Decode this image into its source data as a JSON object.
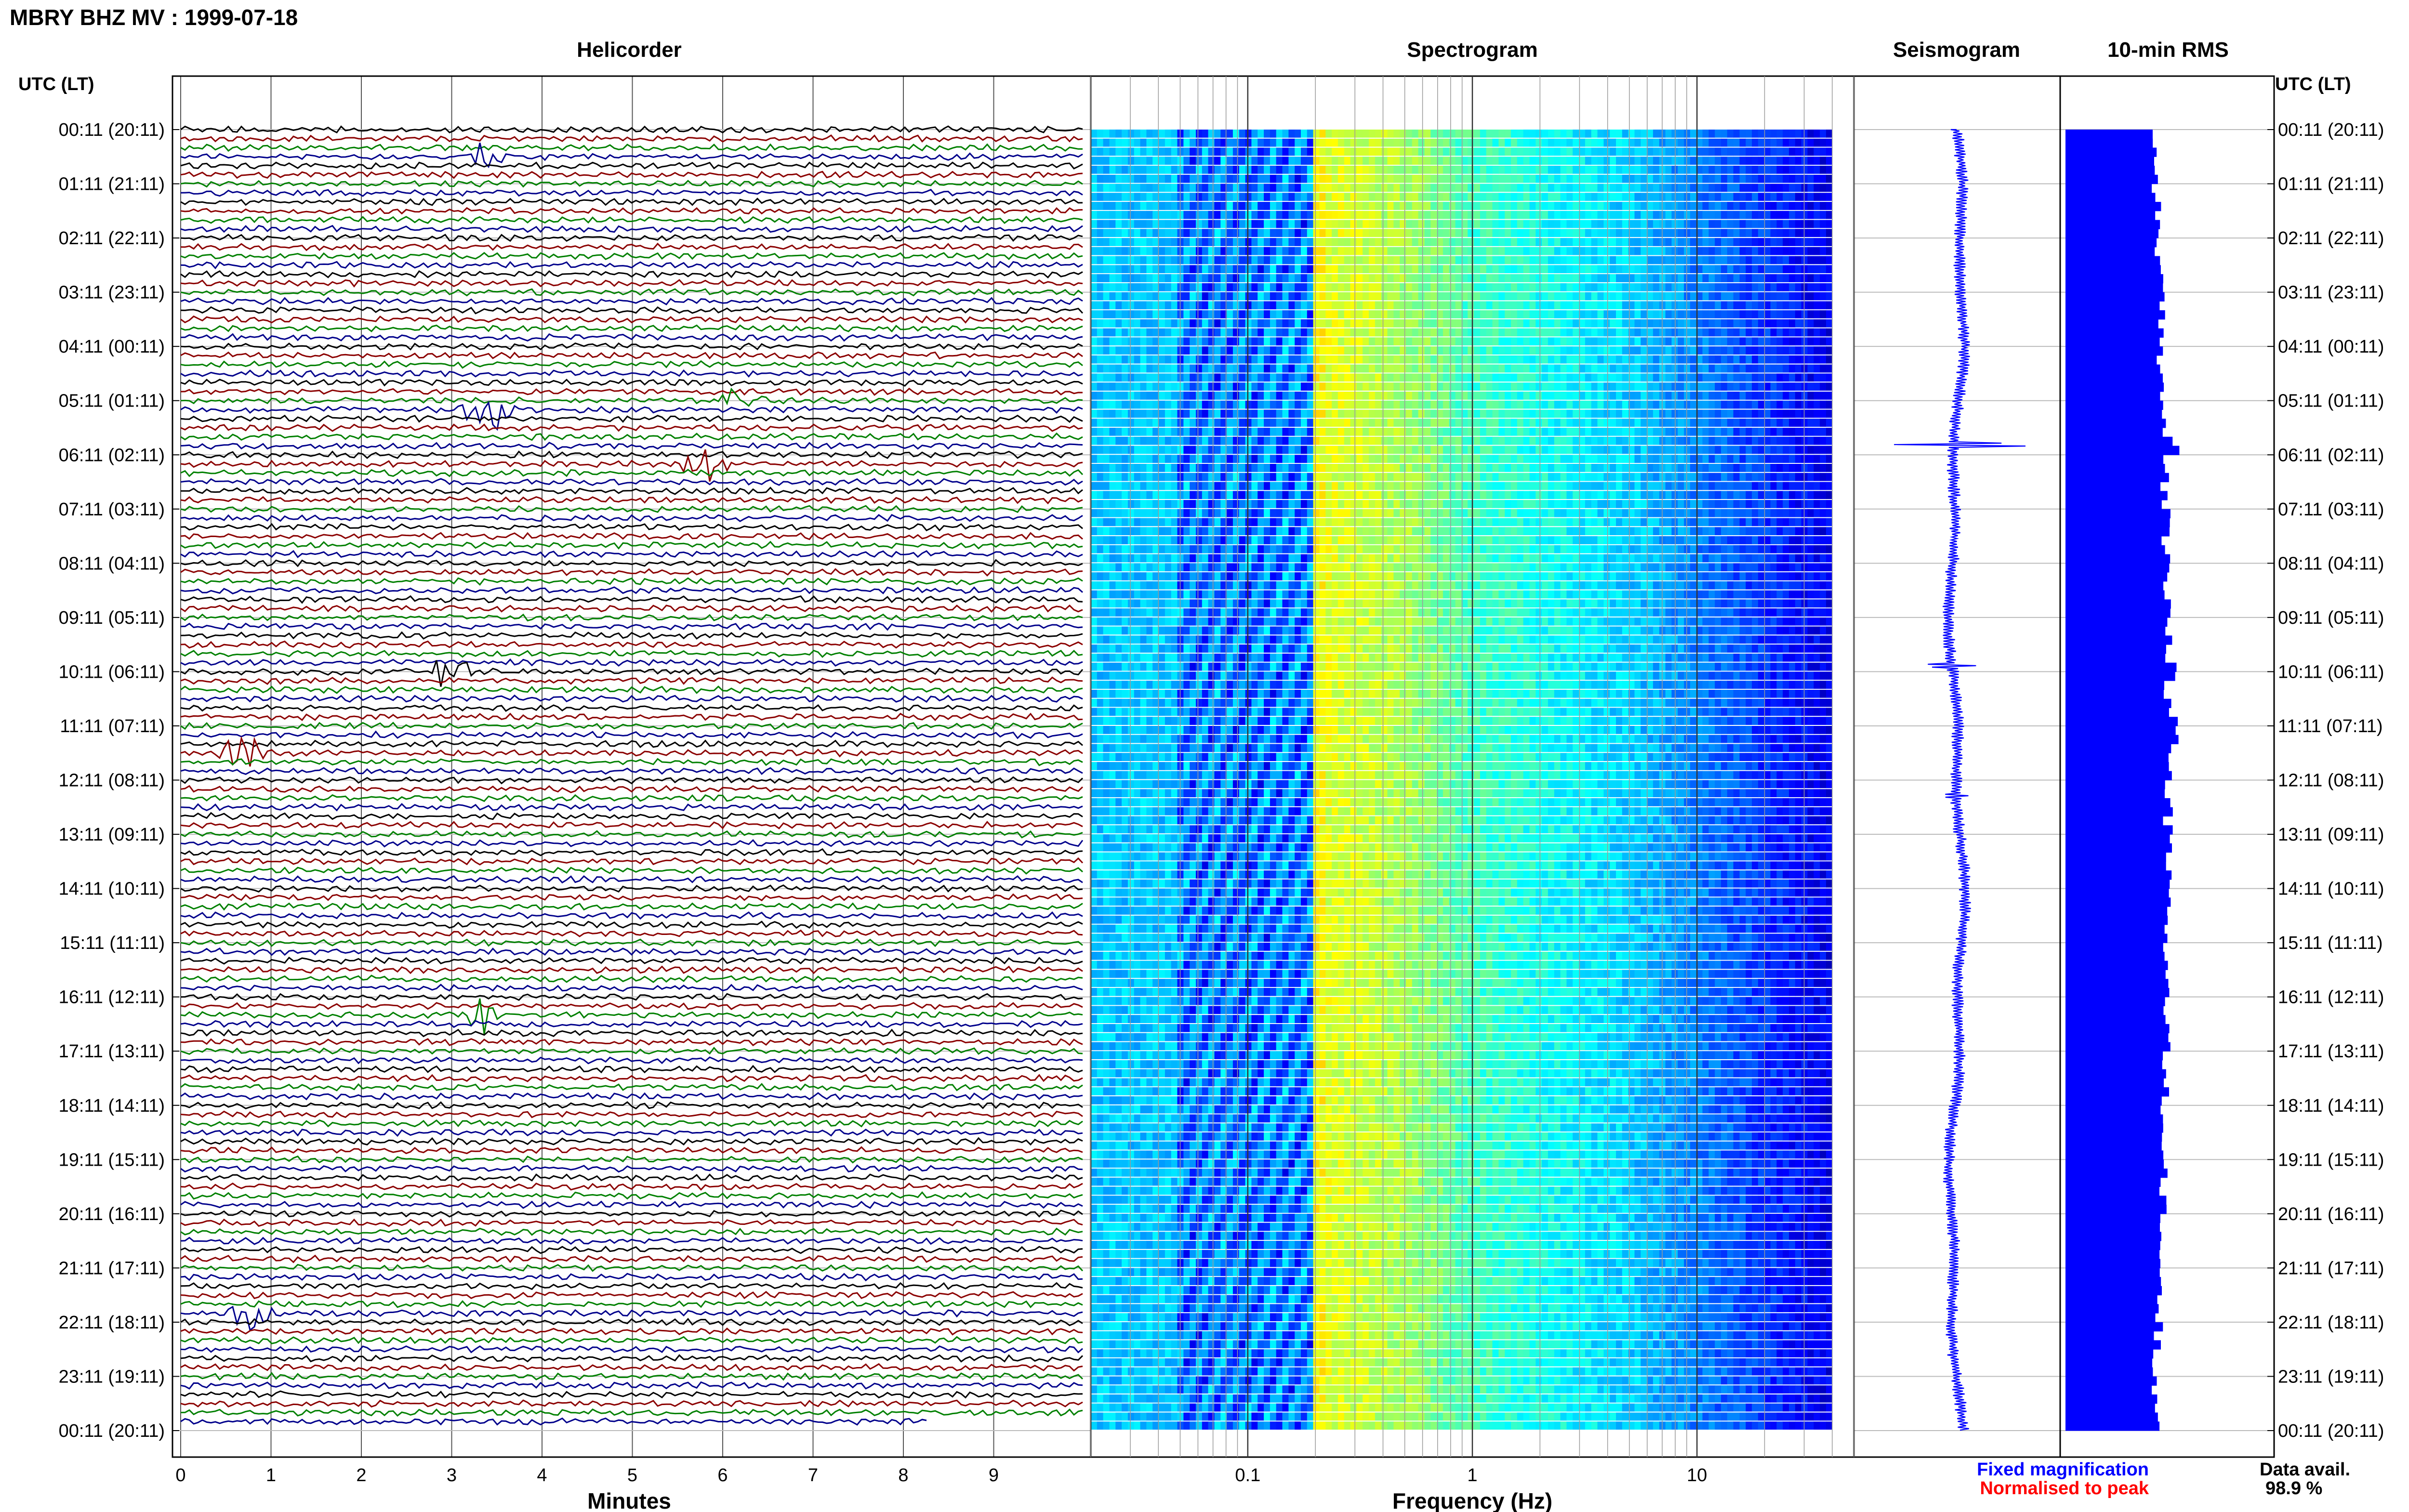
{
  "header": {
    "title": "MBRY BHZ MV : 1999-07-18"
  },
  "panels": {
    "helicorder": "Helicorder",
    "spectrogram": "Spectrogram",
    "seismogram": "Seismogram",
    "rms": "10-min RMS"
  },
  "axis": {
    "left_title": "UTC (LT)",
    "right_title": "UTC (LT)",
    "helicorder_xlabel": "Minutes",
    "spectrogram_xlabel": "Frequency (Hz)"
  },
  "legend": {
    "fixed": "Fixed magnification",
    "fixed_color": "#0000ff",
    "normalised": "Normalised to peak",
    "normalised_color": "#ff0000"
  },
  "availability": {
    "label": "Data avail.",
    "value": "98.9 %"
  },
  "colors": {
    "trace_cycle": [
      "#000000",
      "#8b0000",
      "#008000",
      "#00008b"
    ],
    "seismogram": "#0000ff",
    "rms_bar": "#0000ff",
    "spectrogram_low": "#00008b",
    "spectrogram_high": "#ffff00"
  },
  "chart_data": [
    {
      "type": "line",
      "name": "helicorder",
      "title": "Helicorder",
      "xlabel": "Minutes",
      "xlim": [
        0,
        10
      ],
      "x_ticks": [
        "0",
        "1",
        "2",
        "3",
        "4",
        "5",
        "6",
        "7",
        "8",
        "9"
      ],
      "time_labels_utc_lt": [
        "00:11 (20:11)",
        "01:11 (21:11)",
        "02:11 (22:11)",
        "03:11 (23:11)",
        "04:11 (00:11)",
        "05:11 (01:11)",
        "06:11 (02:11)",
        "07:11 (03:11)",
        "08:11 (04:11)",
        "09:11 (05:11)",
        "10:11 (06:11)",
        "11:11 (07:11)",
        "12:11 (08:11)",
        "13:11 (09:11)",
        "14:11 (10:11)",
        "15:11 (11:11)",
        "16:11 (12:11)",
        "17:11 (13:11)",
        "18:11 (14:11)",
        "19:11 (15:11)",
        "20:11 (16:11)",
        "21:11 (17:11)",
        "22:11 (18:11)",
        "23:11 (19:11)",
        "00:11 (20:11)"
      ],
      "traces_per_hour": 6,
      "trace_minutes": 10,
      "last_trace_end_minute": 8.3,
      "events": [
        {
          "trace": 3,
          "minute": 3.3,
          "amplitude": 2
        },
        {
          "trace": 30,
          "minute": 6.2,
          "amplitude": 3
        },
        {
          "trace": 31,
          "minute": 3.4,
          "amplitude": 5
        },
        {
          "trace": 37,
          "minute": 5.8,
          "amplitude": 3
        },
        {
          "trace": 60,
          "minute": 3.0,
          "amplitude": 3
        },
        {
          "trace": 69,
          "minute": 0.7,
          "amplitude": 3
        },
        {
          "trace": 98,
          "minute": 3.3,
          "amplitude": 3
        },
        {
          "trace": 131,
          "minute": 0.8,
          "amplitude": 3
        }
      ]
    },
    {
      "type": "heatmap",
      "name": "spectrogram",
      "title": "Spectrogram",
      "xlabel": "Frequency (Hz)",
      "xscale": "log",
      "xlim": [
        0.02,
        50
      ],
      "x_ticks": [
        0.1,
        1,
        10
      ],
      "x_tick_labels": [
        "0.1",
        "1",
        "10"
      ],
      "max_frequency": 40,
      "high_energy_band_hz": [
        0.2,
        0.9
      ],
      "colormap": "jet"
    },
    {
      "type": "line",
      "name": "seismogram",
      "title": "Seismogram",
      "hours": 24,
      "spikes": [
        {
          "hour": 5.8,
          "amplitude": 14
        },
        {
          "hour": 9.9,
          "amplitude": 4
        },
        {
          "hour": 12.3,
          "amplitude": 3
        }
      ]
    },
    {
      "type": "bar",
      "name": "rms",
      "title": "10-min RMS",
      "orientation": "horizontal",
      "bar_count": 144,
      "relative_level_range": [
        0.38,
        0.52
      ],
      "peak_hours": [
        5.8,
        9.9,
        11.0
      ]
    }
  ]
}
